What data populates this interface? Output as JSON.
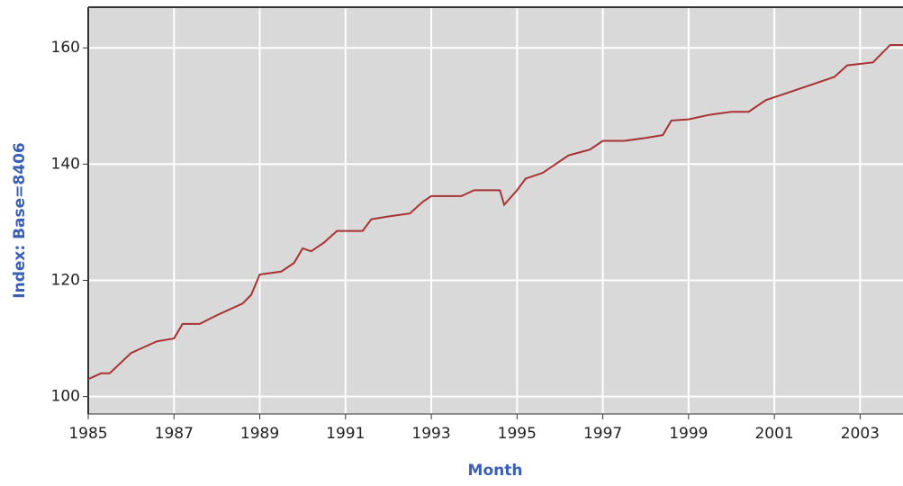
{
  "chart_data": {
    "type": "line",
    "x_label": "Month",
    "y_label": "Index: Base=8406",
    "xlim": [
      1985,
      2004
    ],
    "ylim": [
      97,
      167
    ],
    "xticks": [
      1985,
      1987,
      1989,
      1991,
      1993,
      1995,
      1997,
      1999,
      2001,
      2003
    ],
    "yticks": [
      100,
      120,
      140,
      160
    ],
    "grid": true,
    "series": [
      {
        "name": "Index",
        "color": "#a83232",
        "x": [
          1985.0,
          1985.3,
          1985.5,
          1986.0,
          1986.3,
          1986.6,
          1987.0,
          1987.2,
          1987.6,
          1988.0,
          1988.3,
          1988.6,
          1988.8,
          1989.0,
          1989.5,
          1989.8,
          1990.0,
          1990.2,
          1990.5,
          1990.8,
          1991.4,
          1991.6,
          1992.0,
          1992.5,
          1992.8,
          1993.0,
          1993.7,
          1994.0,
          1994.6,
          1994.7,
          1995.0,
          1995.2,
          1995.6,
          1995.9,
          1996.2,
          1996.7,
          1997.0,
          1997.5,
          1998.0,
          1998.4,
          1998.6,
          1999.0,
          1999.5,
          2000.0,
          2000.4,
          2000.8,
          2001.0,
          2001.6,
          2002.0,
          2002.4,
          2002.7,
          2003.3,
          2003.7,
          2004.0
        ],
        "values": [
          103,
          104,
          104,
          107.5,
          108.5,
          109.5,
          110,
          112.5,
          112.5,
          114,
          115,
          116,
          117.5,
          121,
          121.5,
          123,
          125.5,
          125,
          126.5,
          128.5,
          128.5,
          130.5,
          131,
          131.5,
          133.5,
          134.5,
          134.5,
          135.5,
          135.5,
          133,
          135.5,
          137.5,
          138.5,
          140,
          141.5,
          142.5,
          144,
          144,
          144.5,
          145,
          147.5,
          147.7,
          148.5,
          149,
          149,
          151,
          151.5,
          153,
          154,
          155,
          157,
          157.5,
          160.5,
          160.5
        ]
      }
    ]
  }
}
